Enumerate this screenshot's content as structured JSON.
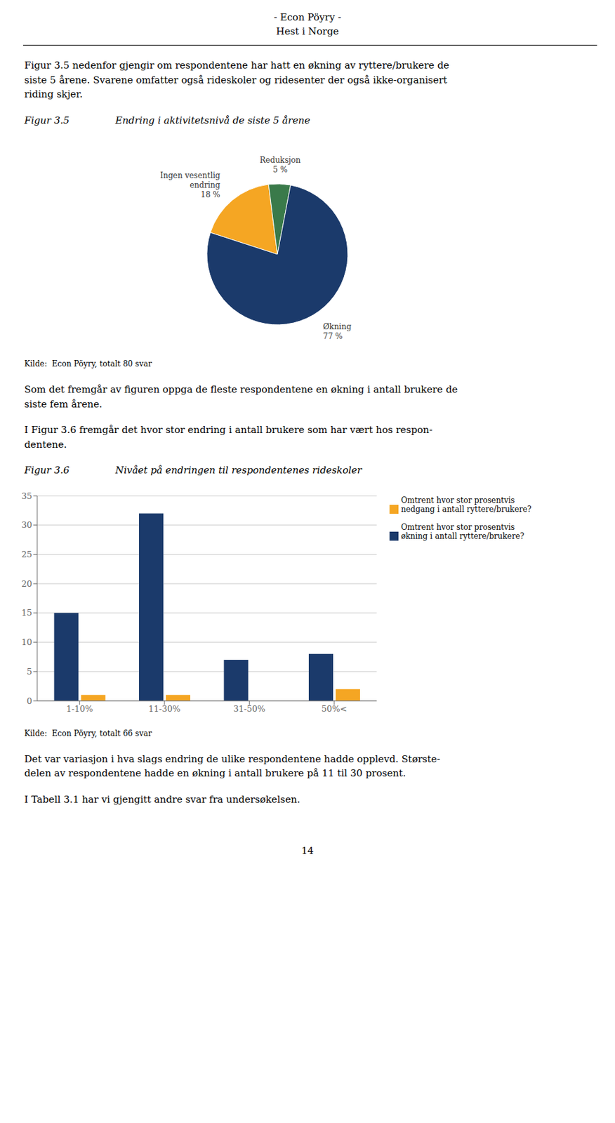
{
  "chart_data": [
    {
      "type": "pie",
      "title": "Endring i aktivitetsnivå de siste 5 årene",
      "subtitle": "Figur 3.5",
      "annotations": [
        "- Econ Pöyry -",
        "Hest i Norge",
        "Figur 3.5 nedenfor gjengir om respondentene har hatt en økning av ryttere/brukere de\nsiste 5 årene. Svarene omfatter også rideskoler og ridesenter der også ikke-organisert\nriding skjer.",
        "Kilde:  Econ Pöyry, totalt 80 svar",
        "Som det fremgår av figuren oppga de fleste respondentene en økning i antall brukere de\nsiste fem årene.",
        "I Figur 3.6 fremgår det hvor stor endring i antall brukere som har vært hos respon-\ndentene."
      ],
      "categories": [
        "Ingen vesentlig\nendring",
        "Reduksjon",
        "Økning"
      ],
      "values": [
        18,
        5,
        77
      ],
      "value_labels": [
        "18 %",
        "5 %",
        "77 %"
      ],
      "colors": [
        "#f5a623",
        "#3a7a4a",
        "#1b3a6b"
      ],
      "data_labels": true
    },
    {
      "type": "bar",
      "title": "Nivået på endringen til respondentenes rideskoler",
      "subtitle": "Figur 3.6",
      "annotations": [
        "Kilde:  Econ Pöyry, totalt 66 svar",
        "Det var variasjon i hva slags endring de ulike respondentene hadde opplevd. Største-\ndelen av respondentene hadde en økning i antall brukere på 11 til 30 prosent.",
        "I Tabell 3.1 har vi gjengitt andre svar fra undersøkelsen.",
        "14"
      ],
      "categories": [
        "1-10%",
        "11-30%",
        "31-50%",
        "50%<"
      ],
      "series": [
        {
          "name": "Omtrent hvor stor prosentvis\nøkning i antall ryttere/brukere?",
          "color": "#1b3a6b",
          "values": [
            15,
            32,
            7,
            8
          ]
        },
        {
          "name": "Omtrent hvor stor prosentvis\nnedgang i antall ryttere/brukere?",
          "color": "#f5a623",
          "values": [
            1,
            1,
            0,
            2
          ]
        }
      ],
      "ylim": [
        0,
        35
      ],
      "yticks": [
        0,
        5,
        10,
        15,
        20,
        25,
        30,
        35
      ],
      "grid": true,
      "legend": "right"
    }
  ]
}
